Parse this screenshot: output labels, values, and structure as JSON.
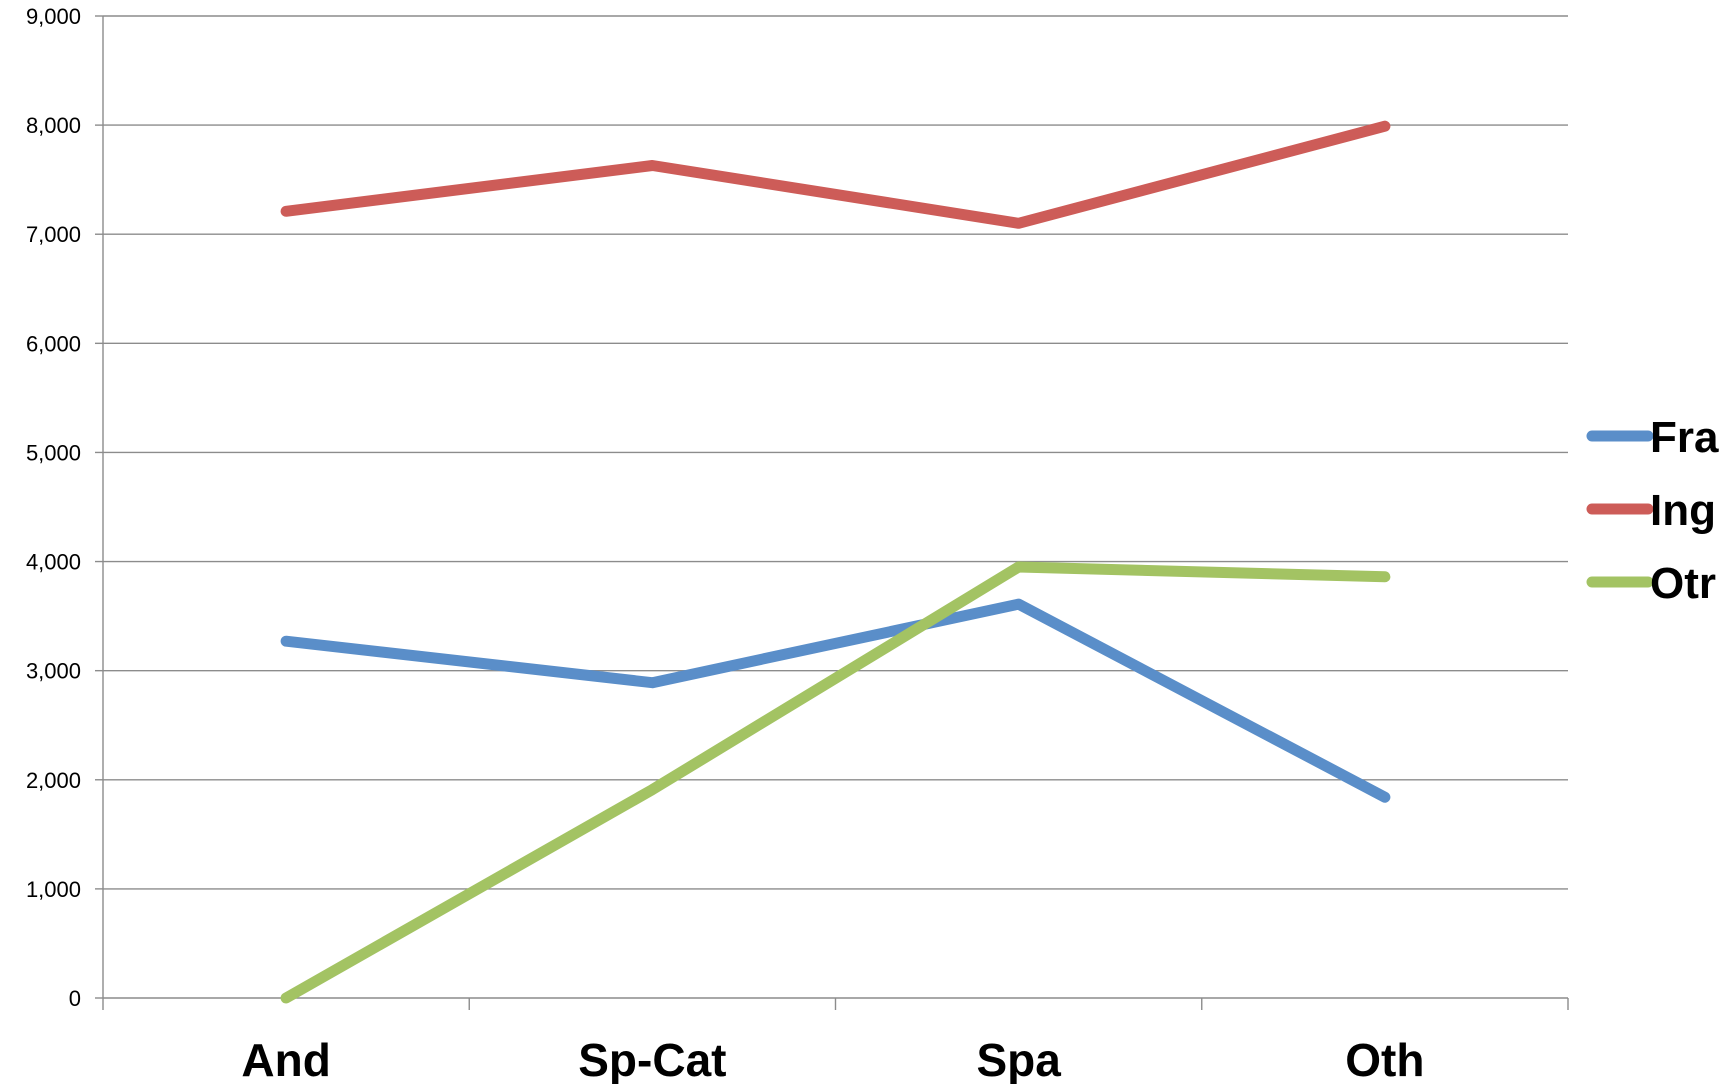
{
  "chart_data": {
    "type": "line",
    "categories": [
      "And",
      "Sp-Cat",
      "Spa",
      "Oth"
    ],
    "series": [
      {
        "name": "Fra",
        "color": "#5a8ec9",
        "values": [
          3270,
          2890,
          3610,
          1840
        ]
      },
      {
        "name": "Ing",
        "color": "#cd5c58",
        "values": [
          7210,
          7630,
          7100,
          7990
        ]
      },
      {
        "name": "Otr",
        "color": "#a3c363",
        "values": [
          0,
          1910,
          3950,
          3860
        ]
      }
    ],
    "ylim": [
      0,
      9000
    ],
    "yticks": [
      "0",
      "1,000",
      "2,000",
      "3,000",
      "4,000",
      "5,000",
      "6,000",
      "7,000",
      "8,000",
      "9,000"
    ],
    "grid": true,
    "legend_position": "right"
  }
}
